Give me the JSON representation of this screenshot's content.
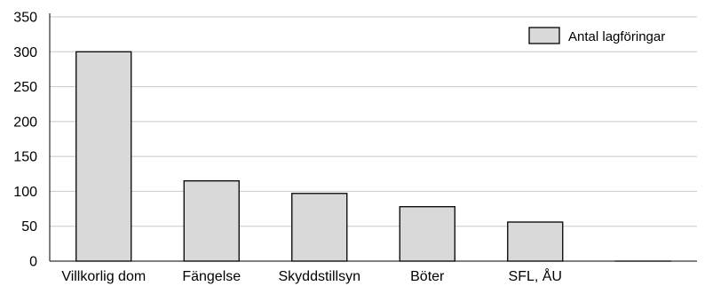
{
  "chart_data": {
    "type": "bar",
    "categories": [
      "Villkorlig dom",
      "Fängelse",
      "Skyddstillsyn",
      "Böter",
      "SFL, ÅU",
      ""
    ],
    "series": [
      {
        "name": "Antal lagföringar",
        "values": [
          300,
          115,
          97,
          78,
          56,
          0
        ]
      }
    ],
    "ylim": [
      0,
      350
    ],
    "yticks": [
      "0",
      "50",
      "100",
      "150",
      "200",
      "250",
      "300",
      "350"
    ],
    "grid": true,
    "legend": "top-right",
    "colors": {
      "bar_fill": "#d9d9d9",
      "bar_stroke": "#000000",
      "grid": "#c8c8c8",
      "axis": "#000000"
    }
  }
}
